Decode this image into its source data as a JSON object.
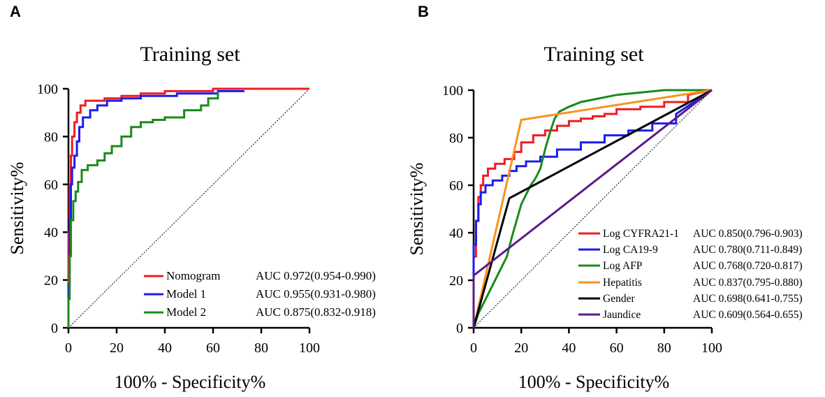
{
  "chart_data": [
    {
      "panel_letter": "A",
      "type": "line",
      "title": "Training set",
      "xlabel": "100% - Specificity%",
      "ylabel": "Sensitivity%",
      "xlim": [
        0,
        100
      ],
      "ylim": [
        0,
        100
      ],
      "xticks": [
        "0",
        "20",
        "40",
        "60",
        "80",
        "100"
      ],
      "yticks": [
        "0",
        "20",
        "40",
        "60",
        "80",
        "100"
      ],
      "diagonal_reference": true,
      "legend_placement": "bottom-right",
      "series": [
        {
          "name": "Nomogram",
          "auc": "AUC 0.972(0.954-0.990)",
          "color": "#ee1c24",
          "x": [
            0,
            0,
            0.5,
            0.5,
            1,
            1,
            1.5,
            1.5,
            2.5,
            2.5,
            3.5,
            3.5,
            5,
            5,
            7,
            7,
            15,
            15,
            22,
            22,
            30,
            30,
            40,
            40,
            60,
            60,
            100
          ],
          "y": [
            0,
            40,
            40,
            60,
            60,
            72,
            72,
            80,
            80,
            86,
            86,
            90,
            90,
            93,
            93,
            95,
            95,
            96,
            96,
            97,
            97,
            98,
            98,
            99,
            99,
            100,
            100
          ]
        },
        {
          "name": "Model 1",
          "auc": "AUC 0.955(0.931-0.980)",
          "color": "#1c1cee",
          "x": [
            0,
            0,
            0.5,
            0.5,
            1,
            1,
            1.5,
            1.5,
            2.5,
            2.5,
            3.5,
            3.5,
            4.5,
            4.5,
            6,
            6,
            9,
            9,
            12,
            12,
            16,
            16,
            22,
            22,
            30,
            30,
            45,
            45,
            62,
            62,
            73
          ],
          "y": [
            0,
            18,
            18,
            45,
            45,
            60,
            60,
            67,
            67,
            72,
            72,
            78,
            78,
            84,
            84,
            88,
            88,
            91,
            91,
            93,
            93,
            95,
            95,
            96,
            96,
            97,
            97,
            98,
            98,
            99,
            99
          ]
        },
        {
          "name": "Model 2",
          "auc": "AUC 0.875(0.832-0.918)",
          "color": "#1a8a1a",
          "x": [
            0,
            0,
            0.5,
            0.5,
            1,
            1,
            2,
            2,
            3,
            3,
            4,
            4,
            5.5,
            5.5,
            8,
            8,
            12,
            12,
            15,
            15,
            18,
            18,
            22,
            22,
            26,
            26,
            30,
            30,
            35,
            35,
            40,
            40,
            48,
            48,
            55,
            55,
            58,
            58,
            62,
            62
          ],
          "y": [
            0,
            12,
            12,
            30,
            30,
            45,
            45,
            53,
            53,
            57,
            57,
            61,
            61,
            66,
            66,
            68,
            68,
            70,
            70,
            73,
            73,
            76,
            76,
            80,
            80,
            84,
            84,
            86,
            86,
            87,
            87,
            88,
            88,
            91,
            91,
            93,
            93,
            96,
            96,
            99
          ]
        }
      ]
    },
    {
      "panel_letter": "B",
      "type": "line",
      "title": "Training set",
      "xlabel": "100% - Specificity%",
      "ylabel": "Sensitivity%",
      "xlim": [
        0,
        100
      ],
      "ylim": [
        0,
        100
      ],
      "xticks": [
        "0",
        "20",
        "40",
        "60",
        "80",
        "100"
      ],
      "yticks": [
        "0",
        "20",
        "40",
        "60",
        "80",
        "100"
      ],
      "diagonal_reference": true,
      "legend_placement": "bottom-right",
      "series": [
        {
          "name": "Log CYFRA21-1",
          "auc": "AUC 0.850(0.796-0.903)",
          "color": "#ee1c24",
          "x": [
            0,
            0,
            1,
            1,
            2,
            2,
            3,
            3,
            4,
            4,
            6,
            6,
            9,
            9,
            13,
            13,
            17,
            17,
            20,
            20,
            25,
            25,
            30,
            30,
            35,
            35,
            40,
            40,
            45,
            45,
            50,
            50,
            55,
            55,
            60,
            60,
            70,
            70,
            80,
            80,
            90,
            90,
            100
          ],
          "y": [
            0,
            30,
            30,
            45,
            45,
            55,
            55,
            60,
            60,
            64,
            64,
            67,
            67,
            69,
            69,
            71,
            71,
            74,
            74,
            78,
            78,
            81,
            81,
            83,
            83,
            85,
            85,
            87,
            87,
            88,
            88,
            89,
            89,
            90,
            90,
            92,
            92,
            93,
            93,
            95,
            95,
            98,
            100
          ]
        },
        {
          "name": "Log CA19-9",
          "auc": "AUC 0.780(0.711-0.849)",
          "color": "#1c1cee",
          "x": [
            0,
            0,
            1,
            1,
            2,
            2,
            3,
            3,
            5,
            5,
            8,
            8,
            12,
            12,
            15,
            15,
            18,
            18,
            22,
            22,
            28,
            28,
            35,
            35,
            45,
            45,
            55,
            55,
            65,
            65,
            75,
            75,
            85,
            85,
            100
          ],
          "y": [
            0,
            35,
            35,
            45,
            45,
            52,
            52,
            57,
            57,
            60,
            60,
            62,
            62,
            64,
            64,
            66,
            66,
            68,
            68,
            70,
            70,
            72,
            72,
            75,
            75,
            78,
            78,
            81,
            81,
            83,
            83,
            86,
            86,
            90,
            100
          ]
        },
        {
          "name": "Log AFP",
          "auc": "AUC 0.768(0.720-0.817)",
          "color": "#1a8a1a",
          "x": [
            0,
            1,
            2,
            4,
            6,
            8,
            10,
            12,
            14,
            15,
            16,
            18,
            20,
            22,
            24,
            26,
            28,
            30,
            32,
            34,
            36,
            40,
            45,
            50,
            60,
            70,
            80,
            90,
            100
          ],
          "y": [
            0,
            3,
            6,
            10,
            14,
            18,
            22,
            26,
            30,
            34,
            38,
            45,
            52,
            56,
            60,
            63,
            67,
            75,
            82,
            88,
            91,
            93,
            95,
            96,
            98,
            99,
            100,
            100,
            100
          ]
        },
        {
          "name": "Hepatitis",
          "auc": "AUC 0.837(0.795-0.880)",
          "color": "#f7941d",
          "x": [
            0,
            20,
            100
          ],
          "y": [
            0,
            87.5,
            100
          ]
        },
        {
          "name": "Gender",
          "auc": "AUC 0.698(0.641-0.755)",
          "color": "#000000",
          "x": [
            0,
            15,
            100
          ],
          "y": [
            0,
            54.5,
            100
          ]
        },
        {
          "name": "Jaundice",
          "auc": "AUC 0.609(0.564-0.655)",
          "color": "#5b1a8a",
          "x": [
            0,
            0,
            100
          ],
          "y": [
            0,
            22,
            100
          ]
        }
      ]
    }
  ]
}
